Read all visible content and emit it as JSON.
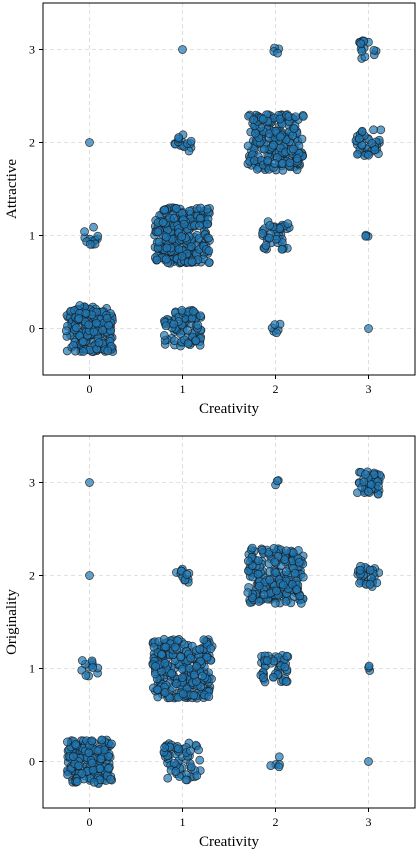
{
  "chart_data": [
    {
      "type": "scatter",
      "jitter": true,
      "xlabel": "Creativity",
      "ylabel": "Attractive",
      "xlim": [
        -0.5,
        3.5
      ],
      "ylim": [
        -0.5,
        3.5
      ],
      "xticks": [
        0,
        1,
        2,
        3
      ],
      "yticks": [
        0,
        1,
        2,
        3
      ],
      "grid": true,
      "point_color": "#1f77b4",
      "clusters": [
        {
          "x": 0,
          "y": 0,
          "count": 200,
          "spread": 0.25
        },
        {
          "x": 0,
          "y": 1,
          "count": 12,
          "spread": 0.1
        },
        {
          "x": 0,
          "y": 2,
          "count": 1,
          "spread": 0.0
        },
        {
          "x": 1,
          "y": 0,
          "count": 80,
          "spread": 0.2
        },
        {
          "x": 1,
          "y": 1,
          "count": 260,
          "spread": 0.3
        },
        {
          "x": 1,
          "y": 2,
          "count": 15,
          "spread": 0.1
        },
        {
          "x": 1,
          "y": 3,
          "count": 1,
          "spread": 0.0
        },
        {
          "x": 2,
          "y": 0,
          "count": 6,
          "spread": 0.05
        },
        {
          "x": 2,
          "y": 1,
          "count": 40,
          "spread": 0.15
        },
        {
          "x": 2,
          "y": 2,
          "count": 220,
          "spread": 0.3
        },
        {
          "x": 2,
          "y": 3,
          "count": 4,
          "spread": 0.04
        },
        {
          "x": 3,
          "y": 0,
          "count": 1,
          "spread": 0.0
        },
        {
          "x": 3,
          "y": 1,
          "count": 3,
          "spread": 0.03
        },
        {
          "x": 3,
          "y": 2,
          "count": 40,
          "spread": 0.14
        },
        {
          "x": 3,
          "y": 3,
          "count": 15,
          "spread": 0.1
        }
      ]
    },
    {
      "type": "scatter",
      "jitter": true,
      "xlabel": "Creativity",
      "ylabel": "Originality",
      "xlim": [
        -0.5,
        3.5
      ],
      "ylim": [
        -0.5,
        3.5
      ],
      "xticks": [
        0,
        1,
        2,
        3
      ],
      "yticks": [
        0,
        1,
        2,
        3
      ],
      "grid": true,
      "point_color": "#1f77b4",
      "clusters": [
        {
          "x": 0,
          "y": 0,
          "count": 190,
          "spread": 0.24
        },
        {
          "x": 0,
          "y": 1,
          "count": 12,
          "spread": 0.1
        },
        {
          "x": 0,
          "y": 2,
          "count": 1,
          "spread": 0.0
        },
        {
          "x": 0,
          "y": 3,
          "count": 1,
          "spread": 0.0
        },
        {
          "x": 1,
          "y": 0,
          "count": 60,
          "spread": 0.2
        },
        {
          "x": 1,
          "y": 1,
          "count": 260,
          "spread": 0.32
        },
        {
          "x": 1,
          "y": 2,
          "count": 12,
          "spread": 0.08
        },
        {
          "x": 2,
          "y": 0,
          "count": 5,
          "spread": 0.06
        },
        {
          "x": 2,
          "y": 1,
          "count": 45,
          "spread": 0.16
        },
        {
          "x": 2,
          "y": 2,
          "count": 200,
          "spread": 0.3
        },
        {
          "x": 2,
          "y": 3,
          "count": 3,
          "spread": 0.03
        },
        {
          "x": 3,
          "y": 0,
          "count": 1,
          "spread": 0.0
        },
        {
          "x": 3,
          "y": 1,
          "count": 3,
          "spread": 0.03
        },
        {
          "x": 3,
          "y": 2,
          "count": 30,
          "spread": 0.12
        },
        {
          "x": 3,
          "y": 3,
          "count": 40,
          "spread": 0.13
        }
      ]
    }
  ]
}
